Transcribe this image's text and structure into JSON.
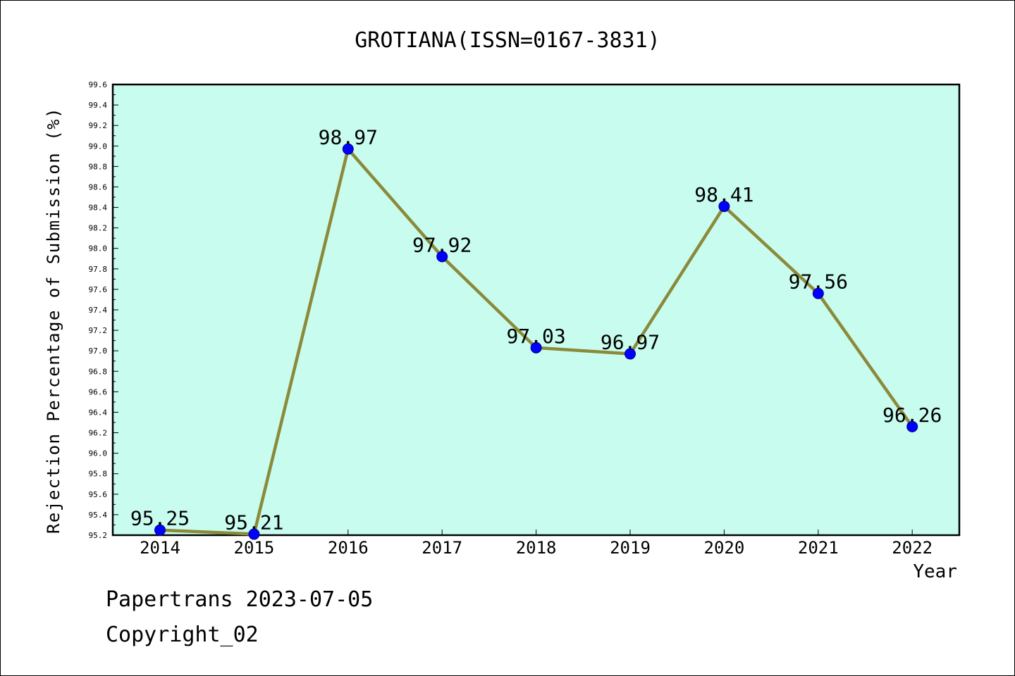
{
  "chart_data": {
    "type": "line",
    "title": "GROTIANA(ISSN=0167-3831)",
    "xlabel": "Year",
    "ylabel": "Rejection Percentage of Submission (%)",
    "categories": [
      "2014",
      "2015",
      "2016",
      "2017",
      "2018",
      "2019",
      "2020",
      "2021",
      "2022"
    ],
    "series": [
      {
        "values": [
          95.25,
          95.21,
          98.97,
          97.92,
          97.03,
          96.97,
          98.41,
          97.56,
          96.26
        ]
      }
    ],
    "data_labels": [
      "95.25",
      "95.21",
      "98.97",
      "97.92",
      "97.03",
      "96.97",
      "98.41",
      "97.56",
      "96.26"
    ],
    "ylim": [
      95.2,
      99.6
    ],
    "yticks": [
      "95.2",
      "95.4",
      "95.6",
      "95.8",
      "96.0",
      "96.2",
      "96.4",
      "96.6",
      "96.8",
      "97.0",
      "97.2",
      "97.4",
      "97.6",
      "97.8",
      "98.0",
      "98.2",
      "98.4",
      "98.6",
      "98.8",
      "99.0",
      "99.2",
      "99.4",
      "99.6"
    ],
    "grid": false,
    "colors": {
      "plot_background": "#c8fcee",
      "line": "#8b8a3a",
      "marker": "#0000ff"
    }
  },
  "footer": {
    "line1": "Papertrans 2023-07-05",
    "line2": "Copyright_02"
  }
}
